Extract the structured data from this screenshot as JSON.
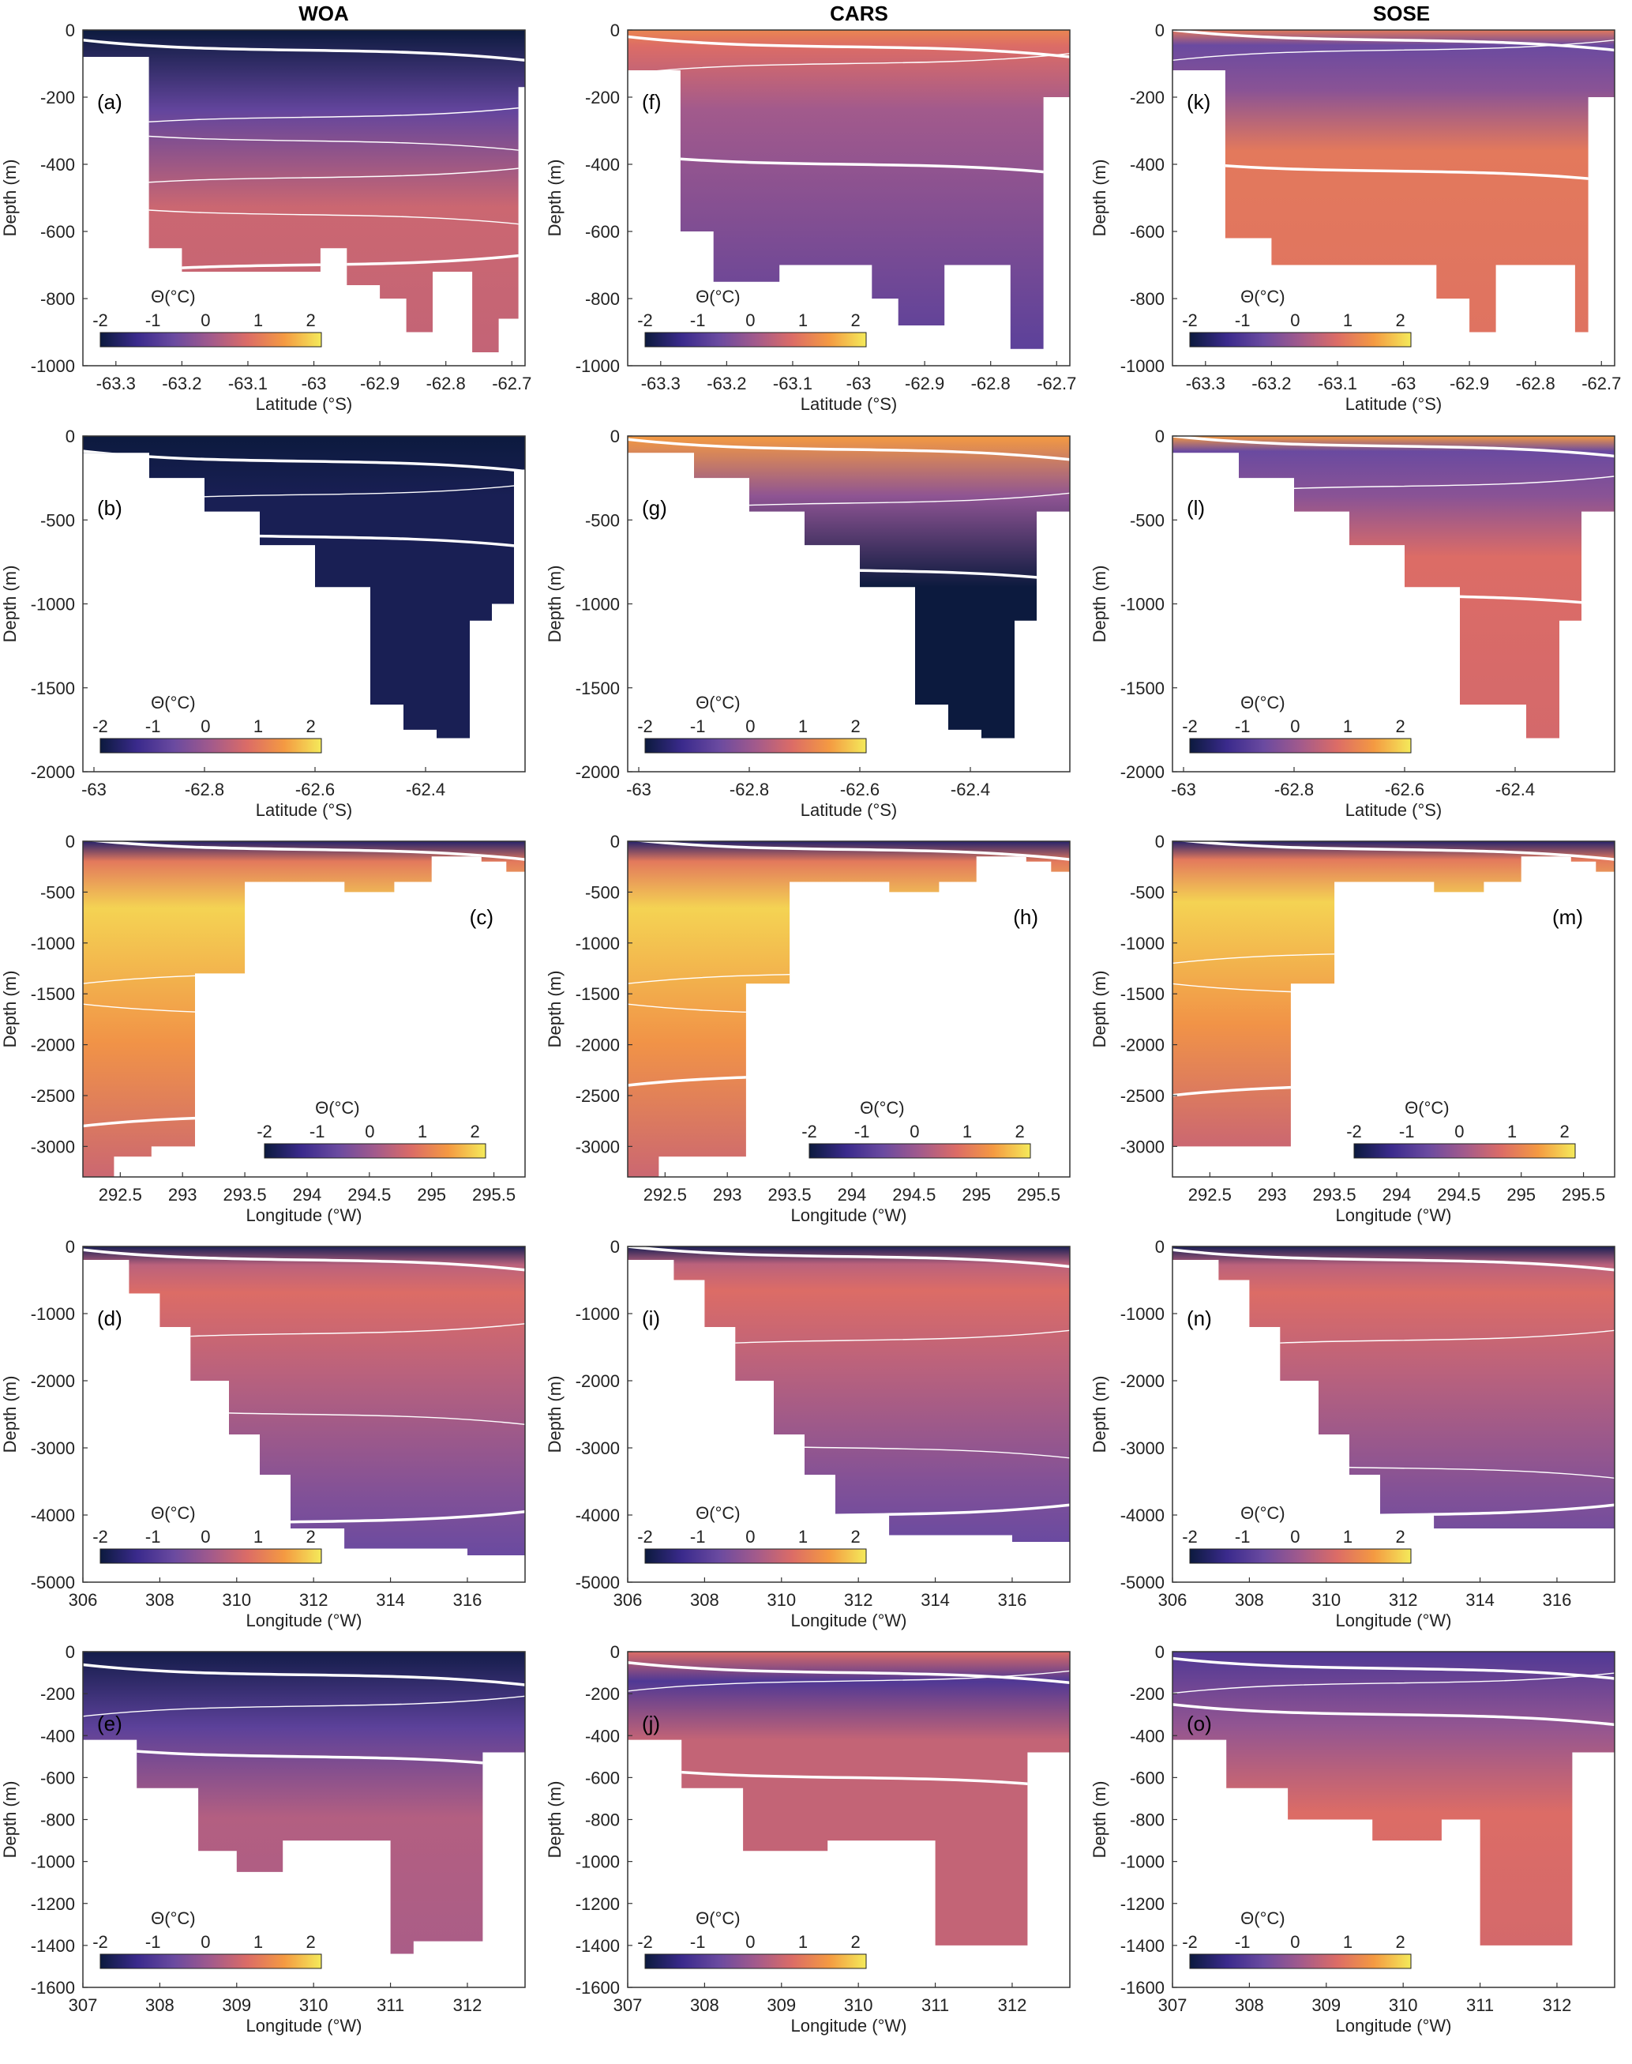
{
  "column_titles": [
    "WOA",
    "CARS",
    "SOSE"
  ],
  "colormap": [
    "#0c1a3e",
    "#3a2a8c",
    "#6a4aa0",
    "#a25a8c",
    "#dc6c66",
    "#f49a42",
    "#f4ea5a"
  ],
  "contour_color": "#ffffff",
  "rows": [
    {
      "ylabel": "Depth (m)",
      "xlabel": "Latitude (°S)",
      "xlim": [
        -63.35,
        -62.68
      ],
      "ylim": [
        -1000,
        0
      ],
      "xticks": [
        -63.3,
        -63.2,
        -63.1,
        -63,
        -62.9,
        -62.8,
        -62.7
      ],
      "yticks": [
        0,
        -200,
        -400,
        -600,
        -800,
        -1000
      ],
      "colorbar": {
        "label": "Θ(°C)",
        "ticks": [
          -2,
          -1,
          0,
          1,
          2
        ],
        "range": [
          -2,
          2.2
        ],
        "position": "lower-left"
      },
      "panel_label_position": "upper-left"
    },
    {
      "ylabel": "Depth (m)",
      "xlabel": "Latitude (°S)",
      "xlim": [
        -63.02,
        -62.22
      ],
      "ylim": [
        -2000,
        0
      ],
      "xticks": [
        -63,
        -62.8,
        -62.6,
        -62.4
      ],
      "yticks": [
        0,
        -500,
        -1000,
        -1500,
        -2000
      ],
      "colorbar": {
        "label": "Θ(°C)",
        "ticks": [
          -2,
          -1,
          0,
          1,
          2
        ],
        "range": [
          -2,
          2.2
        ],
        "position": "lower-left"
      },
      "panel_label_position": "upper-left"
    },
    {
      "ylabel": "Depth (m)",
      "xlabel": "Longitude (°W)",
      "xlim": [
        292.2,
        295.75
      ],
      "ylim": [
        -3300,
        0
      ],
      "xticks": [
        292.5,
        293,
        293.5,
        294,
        294.5,
        295,
        295.5
      ],
      "yticks": [
        0,
        -500,
        -1000,
        -1500,
        -2000,
        -2500,
        -3000
      ],
      "colorbar": {
        "label": "Θ(°C)",
        "ticks": [
          -2,
          -1,
          0,
          1,
          2
        ],
        "range": [
          -2,
          2.2
        ],
        "position": "lower-right"
      },
      "panel_label_position": "upper-right"
    },
    {
      "ylabel": "Depth (m)",
      "xlabel": "Longitude (°W)",
      "xlim": [
        306,
        317.5
      ],
      "ylim": [
        -5000,
        0
      ],
      "xticks": [
        306,
        308,
        310,
        312,
        314,
        316
      ],
      "yticks": [
        0,
        -1000,
        -2000,
        -3000,
        -4000,
        -5000
      ],
      "colorbar": {
        "label": "Θ(°C)",
        "ticks": [
          -2,
          -1,
          0,
          1,
          2
        ],
        "range": [
          -2,
          2.2
        ],
        "position": "lower-left"
      },
      "panel_label_position": "upper-left"
    },
    {
      "ylabel": "Depth (m)",
      "xlabel": "Longitude (°W)",
      "xlim": [
        307,
        312.75
      ],
      "ylim": [
        -1600,
        0
      ],
      "xticks": [
        307,
        308,
        309,
        310,
        311,
        312
      ],
      "yticks": [
        0,
        -200,
        -400,
        -600,
        -800,
        -1000,
        -1200,
        -1400,
        -1600
      ],
      "colorbar": {
        "label": "Θ(°C)",
        "ticks": [
          -2,
          -1,
          0,
          1,
          2
        ],
        "range": [
          -2,
          2.2
        ],
        "position": "lower-left"
      },
      "panel_label_position": "upper-left"
    }
  ],
  "chart_data": [
    {
      "type": "heatmap",
      "panel_label": "(a)",
      "dataset": "WOA",
      "theta_surface": -2.0,
      "theta_deep": 0.6,
      "profile": "warm_at_depth",
      "bottom_steps": [
        [
          -63.35,
          -80
        ],
        [
          -63.3,
          -80
        ],
        [
          -63.25,
          -650
        ],
        [
          -63.2,
          -720
        ],
        [
          -63.12,
          -720
        ],
        [
          -62.99,
          -650
        ],
        [
          -62.95,
          -760
        ],
        [
          -62.9,
          -800
        ],
        [
          -62.86,
          -900
        ],
        [
          -62.82,
          -720
        ],
        [
          -62.8,
          -720
        ],
        [
          -62.76,
          -960
        ],
        [
          -62.72,
          -860
        ],
        [
          -62.69,
          -170
        ]
      ],
      "contour_depths": [
        -60,
        -260,
        -330,
        -440,
        -550,
        -700
      ]
    },
    {
      "type": "heatmap",
      "panel_label": "(b)",
      "dataset": "WOA",
      "theta_surface": -2.0,
      "theta_deep": -1.6,
      "profile": "cold_column",
      "bottom_steps": [
        [
          -63.02,
          -100
        ],
        [
          -62.9,
          -250
        ],
        [
          -62.8,
          -450
        ],
        [
          -62.7,
          -650
        ],
        [
          -62.6,
          -900
        ],
        [
          -62.5,
          -1600
        ],
        [
          -62.44,
          -1750
        ],
        [
          -62.38,
          -1800
        ],
        [
          -62.32,
          -1100
        ],
        [
          -62.28,
          -1000
        ],
        [
          -62.24,
          -200
        ]
      ],
      "contour_depths": [
        -150,
        -350,
        -600
      ]
    },
    {
      "type": "heatmap",
      "panel_label": "(c)",
      "dataset": "WOA",
      "theta_surface": -1.6,
      "theta_deep": 1.6,
      "profile": "warm_core",
      "bottom_steps": [
        [
          292.2,
          -3300
        ],
        [
          292.45,
          -3100
        ],
        [
          292.75,
          -3000
        ],
        [
          293.1,
          -1300
        ],
        [
          293.5,
          -400
        ],
        [
          294.3,
          -500
        ],
        [
          294.7,
          -400
        ],
        [
          295.0,
          -150
        ],
        [
          295.4,
          -200
        ],
        [
          295.6,
          -300
        ]
      ],
      "contour_depths": [
        -80,
        -1300,
        -1700,
        -2700
      ]
    },
    {
      "type": "heatmap",
      "panel_label": "(d)",
      "dataset": "WOA",
      "theta_surface": -1.8,
      "theta_deep": 0.2,
      "profile": "warm_then_cool",
      "bottom_steps": [
        [
          306,
          -200
        ],
        [
          307.2,
          -700
        ],
        [
          308.0,
          -1200
        ],
        [
          308.8,
          -2000
        ],
        [
          309.8,
          -2800
        ],
        [
          310.6,
          -3400
        ],
        [
          311.4,
          -4200
        ],
        [
          312.8,
          -4500
        ],
        [
          316.0,
          -4600
        ],
        [
          317.5,
          -4600
        ]
      ],
      "contour_depths": [
        -200,
        -1300,
        -2500,
        -4100
      ]
    },
    {
      "type": "heatmap",
      "panel_label": "(e)",
      "dataset": "WOA",
      "theta_surface": -1.9,
      "theta_deep": 0.3,
      "profile": "warm_at_depth",
      "bottom_steps": [
        [
          307,
          -420
        ],
        [
          307.7,
          -650
        ],
        [
          308.5,
          -950
        ],
        [
          309.0,
          -1050
        ],
        [
          309.6,
          -900
        ],
        [
          310.5,
          -900
        ],
        [
          311.0,
          -1440
        ],
        [
          311.3,
          -1380
        ],
        [
          312.1,
          -1380
        ],
        [
          312.2,
          -480
        ],
        [
          312.75,
          -480
        ]
      ],
      "contour_depths": [
        -110,
        -260,
        -500
      ]
    },
    {
      "type": "heatmap",
      "panel_label": "(f)",
      "dataset": "CARS",
      "theta_surface": 1.2,
      "theta_deep": -0.8,
      "profile": "warm_top_cool_core",
      "bottom_steps": [
        [
          -63.35,
          -120
        ],
        [
          -63.27,
          -600
        ],
        [
          -63.22,
          -750
        ],
        [
          -63.12,
          -700
        ],
        [
          -62.98,
          -800
        ],
        [
          -62.94,
          -880
        ],
        [
          -62.87,
          -700
        ],
        [
          -62.8,
          -700
        ],
        [
          -62.77,
          -950
        ],
        [
          -62.72,
          -200
        ]
      ],
      "contour_depths": [
        -50,
        -100,
        -400
      ]
    },
    {
      "type": "heatmap",
      "panel_label": "(g)",
      "dataset": "CARS",
      "theta_surface": 1.5,
      "theta_deep": -1.8,
      "profile": "cold_column",
      "bottom_steps": [
        [
          -63.02,
          -100
        ],
        [
          -62.9,
          -250
        ],
        [
          -62.8,
          -450
        ],
        [
          -62.7,
          -650
        ],
        [
          -62.6,
          -900
        ],
        [
          -62.5,
          -1600
        ],
        [
          -62.44,
          -1750
        ],
        [
          -62.38,
          -1800
        ],
        [
          -62.32,
          -1100
        ],
        [
          -62.28,
          -450
        ],
        [
          -62.24,
          -450
        ]
      ],
      "contour_depths": [
        -80,
        -400,
        -800
      ]
    },
    {
      "type": "heatmap",
      "panel_label": "(h)",
      "dataset": "CARS",
      "theta_surface": -1.6,
      "theta_deep": 1.6,
      "profile": "warm_core",
      "bottom_steps": [
        [
          292.2,
          -3300
        ],
        [
          292.45,
          -3100
        ],
        [
          293.15,
          -1400
        ],
        [
          293.5,
          -400
        ],
        [
          294.3,
          -500
        ],
        [
          294.7,
          -400
        ],
        [
          295.0,
          -150
        ],
        [
          295.4,
          -200
        ],
        [
          295.6,
          -300
        ]
      ],
      "contour_depths": [
        -80,
        -1300,
        -1700,
        -2300
      ]
    },
    {
      "type": "heatmap",
      "panel_label": "(i)",
      "dataset": "CARS",
      "theta_surface": -1.8,
      "theta_deep": 0.2,
      "profile": "warm_then_cool",
      "bottom_steps": [
        [
          306,
          -200
        ],
        [
          307.2,
          -500
        ],
        [
          308.0,
          -1200
        ],
        [
          308.8,
          -2000
        ],
        [
          309.8,
          -2800
        ],
        [
          310.6,
          -3400
        ],
        [
          311.4,
          -4000
        ],
        [
          312.8,
          -4300
        ],
        [
          316.0,
          -4400
        ],
        [
          317.5,
          -4400
        ]
      ],
      "contour_depths": [
        -150,
        -1400,
        -3000,
        -4000
      ]
    },
    {
      "type": "heatmap",
      "panel_label": "(j)",
      "dataset": "CARS",
      "theta_surface": 0.8,
      "theta_deep": 0.5,
      "profile": "uniform_warm",
      "bottom_steps": [
        [
          307,
          -420
        ],
        [
          307.7,
          -650
        ],
        [
          308.5,
          -950
        ],
        [
          309.0,
          -950
        ],
        [
          309.6,
          -900
        ],
        [
          310.5,
          -900
        ],
        [
          311.0,
          -1400
        ],
        [
          312.2,
          -1400
        ],
        [
          312.2,
          -480
        ],
        [
          312.75,
          -480
        ]
      ],
      "contour_depths": [
        -100,
        -140,
        -600
      ]
    },
    {
      "type": "heatmap",
      "panel_label": "(k)",
      "dataset": "SOSE",
      "theta_surface": 1.0,
      "theta_deep": 1.0,
      "profile": "cool_lens_top",
      "bottom_steps": [
        [
          -63.35,
          -120
        ],
        [
          -63.27,
          -620
        ],
        [
          -63.2,
          -700
        ],
        [
          -63.03,
          -700
        ],
        [
          -62.95,
          -800
        ],
        [
          -62.9,
          -900
        ],
        [
          -62.86,
          -700
        ],
        [
          -62.78,
          -700
        ],
        [
          -62.74,
          -900
        ],
        [
          -62.72,
          -200
        ]
      ],
      "contour_depths": [
        -30,
        -60,
        -420
      ]
    },
    {
      "type": "heatmap",
      "panel_label": "(l)",
      "dataset": "SOSE",
      "theta_surface": 1.5,
      "theta_deep": 0.8,
      "profile": "cool_lens_top",
      "bottom_steps": [
        [
          -63.02,
          -100
        ],
        [
          -62.9,
          -250
        ],
        [
          -62.8,
          -450
        ],
        [
          -62.7,
          -650
        ],
        [
          -62.6,
          -900
        ],
        [
          -62.5,
          -1600
        ],
        [
          -62.44,
          -1600
        ],
        [
          -62.38,
          -1800
        ],
        [
          -62.32,
          -1100
        ],
        [
          -62.28,
          -450
        ],
        [
          -62.24,
          -450
        ]
      ],
      "contour_depths": [
        -60,
        -300,
        -950
      ]
    },
    {
      "type": "heatmap",
      "panel_label": "(m)",
      "dataset": "SOSE",
      "theta_surface": -1.6,
      "theta_deep": 1.6,
      "profile": "warm_core",
      "bottom_steps": [
        [
          292.2,
          -3000
        ],
        [
          293.15,
          -1400
        ],
        [
          293.5,
          -400
        ],
        [
          294.3,
          -500
        ],
        [
          294.7,
          -400
        ],
        [
          295.0,
          -150
        ],
        [
          295.4,
          -200
        ],
        [
          295.6,
          -300
        ]
      ],
      "contour_depths": [
        -80,
        -1100,
        -1500,
        -2400
      ]
    },
    {
      "type": "heatmap",
      "panel_label": "(n)",
      "dataset": "SOSE",
      "theta_surface": -1.8,
      "theta_deep": 0.2,
      "profile": "warm_then_cool",
      "bottom_steps": [
        [
          306,
          -200
        ],
        [
          307.2,
          -500
        ],
        [
          308.0,
          -1200
        ],
        [
          308.8,
          -2000
        ],
        [
          309.8,
          -2800
        ],
        [
          310.6,
          -3400
        ],
        [
          311.4,
          -4000
        ],
        [
          312.8,
          -4200
        ],
        [
          316.0,
          -4200
        ],
        [
          317.5,
          -4600
        ]
      ],
      "contour_depths": [
        -200,
        -1400,
        -3300,
        -4000
      ]
    },
    {
      "type": "heatmap",
      "panel_label": "(o)",
      "dataset": "SOSE",
      "theta_surface": -1.0,
      "theta_deep": 0.8,
      "profile": "warm_at_depth",
      "bottom_steps": [
        [
          307,
          -420
        ],
        [
          307.7,
          -650
        ],
        [
          308.5,
          -800
        ],
        [
          309.6,
          -900
        ],
        [
          310.5,
          -800
        ],
        [
          311.0,
          -1400
        ],
        [
          312.2,
          -1400
        ],
        [
          312.2,
          -480
        ],
        [
          312.75,
          -480
        ]
      ],
      "contour_depths": [
        -80,
        -150,
        -300
      ]
    }
  ]
}
